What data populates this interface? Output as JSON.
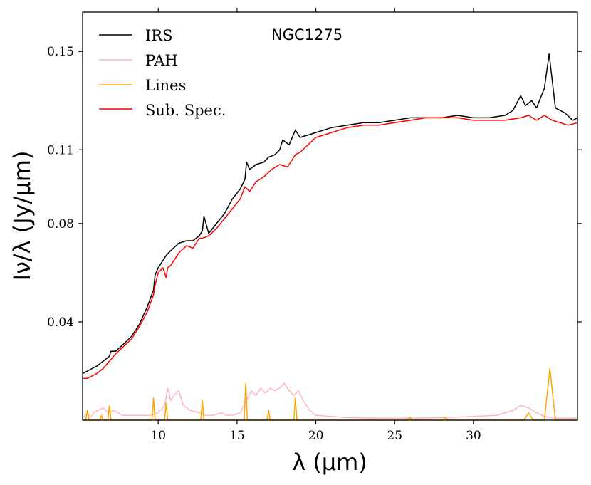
{
  "chart_data": {
    "type": "line",
    "title": "NGC1275",
    "xlabel": "λ (μm)",
    "ylabel": "Iν/λ (Jy/μm)",
    "xlim": [
      5.2,
      36.6
    ],
    "ylim": [
      0.0,
      0.166
    ],
    "x_ticks": [
      10,
      15,
      20,
      25,
      30
    ],
    "y_ticks": [
      0.04,
      0.08,
      0.11,
      0.15
    ],
    "x_tick_labels": [
      "10",
      "15",
      "20",
      "25",
      "30"
    ],
    "y_tick_labels": [
      "0.04",
      "0.08",
      "0.11",
      "0.15"
    ],
    "legend": {
      "position": "top-left",
      "entries": [
        "IRS",
        "PAH",
        "Lines",
        "Sub. Spec."
      ]
    },
    "series": [
      {
        "name": "IRS",
        "color": "#000000",
        "x": [
          5.2,
          5.5,
          5.8,
          6.1,
          6.5,
          6.9,
          7.0,
          7.3,
          7.8,
          8.3,
          8.8,
          9.3,
          9.7,
          9.8,
          10.0,
          10.3,
          10.5,
          10.8,
          11.3,
          11.8,
          12.2,
          12.6,
          12.8,
          12.9,
          13.2,
          13.7,
          14.2,
          14.7,
          15.2,
          15.5,
          15.6,
          15.8,
          16.2,
          16.7,
          17.0,
          17.4,
          17.7,
          17.9,
          18.3,
          18.7,
          19.0,
          19.5,
          20.0,
          21.0,
          22.0,
          23.0,
          24.0,
          25.0,
          26.0,
          27.0,
          28.0,
          29.0,
          30.0,
          31.0,
          32.0,
          32.5,
          33.0,
          33.3,
          33.7,
          34.0,
          34.5,
          34.8,
          35.2,
          35.8,
          36.3,
          36.6
        ],
        "values": [
          0.019,
          0.02,
          0.021,
          0.022,
          0.024,
          0.026,
          0.028,
          0.028,
          0.031,
          0.034,
          0.039,
          0.046,
          0.053,
          0.059,
          0.062,
          0.065,
          0.067,
          0.069,
          0.072,
          0.073,
          0.073,
          0.075,
          0.077,
          0.083,
          0.076,
          0.08,
          0.084,
          0.09,
          0.094,
          0.098,
          0.105,
          0.102,
          0.104,
          0.105,
          0.107,
          0.108,
          0.11,
          0.114,
          0.112,
          0.118,
          0.115,
          0.116,
          0.117,
          0.119,
          0.12,
          0.121,
          0.121,
          0.122,
          0.123,
          0.123,
          0.123,
          0.124,
          0.123,
          0.123,
          0.124,
          0.126,
          0.132,
          0.128,
          0.13,
          0.127,
          0.135,
          0.149,
          0.127,
          0.125,
          0.122,
          0.123
        ]
      },
      {
        "name": "PAH",
        "color": "#ffb6c1",
        "x": [
          5.2,
          5.5,
          5.7,
          5.9,
          6.2,
          6.5,
          6.8,
          7.2,
          7.7,
          8.0,
          8.5,
          9.0,
          9.5,
          10.0,
          10.4,
          10.6,
          10.8,
          11.0,
          11.3,
          11.6,
          12.0,
          12.6,
          13.0,
          13.5,
          14.0,
          14.3,
          14.7,
          15.2,
          15.6,
          15.9,
          16.2,
          16.5,
          16.8,
          17.1,
          17.4,
          17.7,
          18.0,
          18.3,
          18.6,
          18.9,
          19.2,
          19.6,
          20.0,
          22.0,
          25.0,
          28.0,
          30.0,
          31.5,
          32.5,
          33.0,
          33.5,
          34.0,
          34.5,
          35.0,
          35.5,
          36.6
        ],
        "values": [
          0.001,
          0.003,
          0.001,
          0.003,
          0.004,
          0.005,
          0.003,
          0.004,
          0.002,
          0.002,
          0.002,
          0.002,
          0.002,
          0.003,
          0.006,
          0.013,
          0.008,
          0.01,
          0.012,
          0.006,
          0.004,
          0.003,
          0.002,
          0.002,
          0.003,
          0.002,
          0.002,
          0.003,
          0.008,
          0.012,
          0.01,
          0.013,
          0.011,
          0.013,
          0.012,
          0.013,
          0.015,
          0.012,
          0.01,
          0.012,
          0.008,
          0.004,
          0.002,
          0.001,
          0.0008,
          0.001,
          0.0015,
          0.002,
          0.004,
          0.006,
          0.005,
          0.003,
          0.0015,
          0.001,
          0.0008,
          0.0008
        ]
      },
      {
        "name": "Lines",
        "color": "#ffa500",
        "x": [
          5.2,
          5.4,
          5.5,
          5.6,
          6.3,
          6.4,
          6.5,
          6.8,
          6.9,
          7.0,
          9.6,
          9.7,
          9.8,
          10.4,
          10.5,
          10.6,
          12.7,
          12.8,
          12.9,
          15.45,
          15.55,
          15.65,
          16.9,
          17.0,
          17.1,
          18.6,
          18.7,
          18.8,
          25.8,
          25.95,
          26.1,
          28.05,
          28.2,
          28.35,
          33.2,
          33.5,
          33.8,
          34.5,
          34.85,
          35.2,
          36.6
        ],
        "values": [
          0.0,
          0.0,
          0.004,
          0.0,
          0.0,
          0.002,
          0.0,
          0.0,
          0.006,
          0.0,
          0.0,
          0.009,
          0.0,
          0.0,
          0.007,
          0.0,
          0.0,
          0.008,
          0.0,
          0.0,
          0.015,
          0.0,
          0.0,
          0.004,
          0.0,
          0.0,
          0.009,
          0.0,
          0.0,
          0.0012,
          0.0,
          0.0,
          0.0012,
          0.0,
          0.0,
          0.003,
          0.0,
          0.0,
          0.021,
          0.0,
          0.0
        ]
      },
      {
        "name": "Sub. Spec.",
        "color": "#ff0000",
        "x": [
          5.2,
          5.5,
          5.8,
          6.1,
          6.5,
          6.9,
          7.3,
          7.8,
          8.3,
          8.8,
          9.3,
          9.7,
          9.8,
          10.0,
          10.3,
          10.5,
          10.6,
          10.8,
          11.3,
          11.8,
          12.2,
          12.6,
          12.8,
          13.2,
          13.7,
          14.2,
          14.7,
          15.2,
          15.5,
          15.8,
          16.2,
          16.7,
          17.2,
          17.7,
          18.2,
          18.7,
          19.0,
          19.5,
          20.0,
          21.0,
          22.0,
          23.0,
          24.0,
          25.0,
          26.0,
          27.0,
          28.0,
          29.0,
          30.0,
          31.0,
          32.0,
          33.0,
          33.5,
          34.0,
          34.5,
          35.0,
          35.5,
          36.0,
          36.6
        ],
        "values": [
          0.017,
          0.017,
          0.018,
          0.019,
          0.021,
          0.024,
          0.027,
          0.03,
          0.033,
          0.038,
          0.044,
          0.051,
          0.055,
          0.06,
          0.062,
          0.058,
          0.062,
          0.063,
          0.068,
          0.071,
          0.07,
          0.074,
          0.074,
          0.075,
          0.078,
          0.082,
          0.086,
          0.09,
          0.095,
          0.093,
          0.097,
          0.099,
          0.102,
          0.104,
          0.103,
          0.108,
          0.109,
          0.112,
          0.115,
          0.117,
          0.119,
          0.12,
          0.12,
          0.121,
          0.122,
          0.123,
          0.123,
          0.123,
          0.122,
          0.122,
          0.122,
          0.123,
          0.124,
          0.122,
          0.124,
          0.122,
          0.121,
          0.12,
          0.121
        ]
      }
    ]
  }
}
